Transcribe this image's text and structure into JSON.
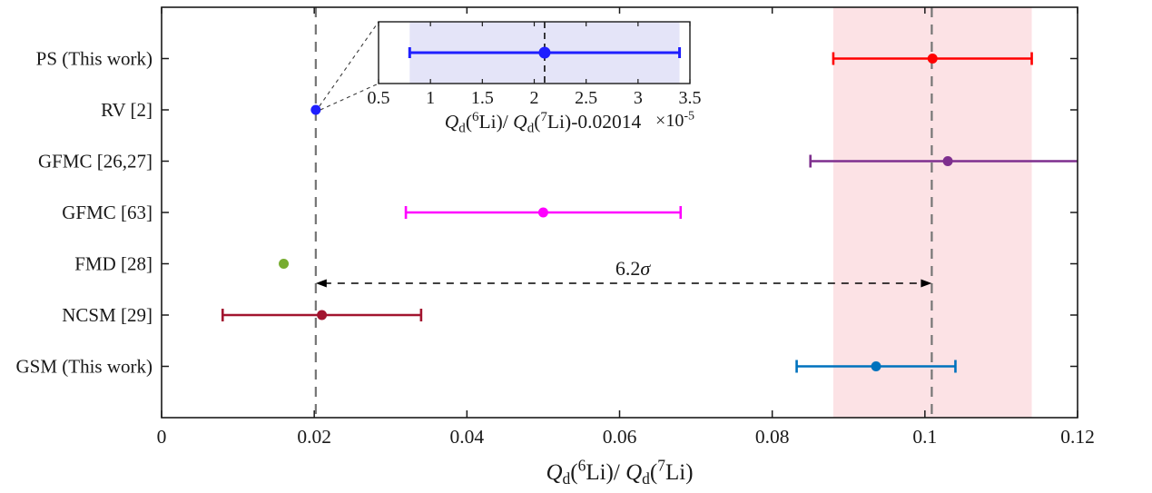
{
  "chart_data": {
    "type": "scatter",
    "title": "",
    "xlabel_plain": "Q_d(6Li)/ Q_d(7Li)",
    "xlabel_segments": [
      {
        "t": "Q",
        "s": "it"
      },
      {
        "t": "d",
        "s": "sub"
      },
      {
        "t": "(",
        "s": "n"
      },
      {
        "t": "6",
        "s": "sup"
      },
      {
        "t": "Li)/ ",
        "s": "n"
      },
      {
        "t": "Q",
        "s": "it"
      },
      {
        "t": "d",
        "s": "sub"
      },
      {
        "t": "(",
        "s": "n"
      },
      {
        "t": "7",
        "s": "sup"
      },
      {
        "t": "Li)",
        "s": "n"
      }
    ],
    "xlim": [
      0,
      0.12
    ],
    "x_ticks": [
      0,
      0.02,
      0.04,
      0.06,
      0.08,
      0.1,
      0.12
    ],
    "x_tick_labels": [
      "0",
      "0.02",
      "0.04",
      "0.06",
      "0.08",
      "0.1",
      "0.12"
    ],
    "grid": false,
    "legend": "none",
    "categories": [
      "PS (This work)",
      "RV [2]",
      "GFMC [26,27]",
      "GFMC [63]",
      "FMD [28]",
      "NCSM [29]",
      "GSM (This work)"
    ],
    "series": [
      {
        "label": "PS (This work)",
        "value": 0.101,
        "err_minus": 0.013,
        "err_plus": 0.013,
        "color": "#ff0000",
        "marker": "circle"
      },
      {
        "label": "RV [2]",
        "value": 0.0202,
        "err_minus": 1.3e-05,
        "err_plus": 1.3e-05,
        "color": "#1f1fff",
        "marker": "circle"
      },
      {
        "label": "GFMC [26,27]",
        "value": 0.103,
        "err_minus": 0.018,
        "err_plus": 0.018,
        "color": "#7e2f8e",
        "marker": "circle"
      },
      {
        "label": "GFMC [63]",
        "value": 0.05,
        "err_minus": 0.018,
        "err_plus": 0.018,
        "color": "#ff00ff",
        "marker": "circle"
      },
      {
        "label": "FMD [28]",
        "value": 0.016,
        "err_minus": 0,
        "err_plus": 0,
        "color": "#77ac30",
        "marker": "circle"
      },
      {
        "label": "NCSM [29]",
        "value": 0.021,
        "err_minus": 0.013,
        "err_plus": 0.013,
        "color": "#a2142f",
        "marker": "circle"
      },
      {
        "label": "GSM (This work)",
        "value": 0.0936,
        "err_minus": 0.0104,
        "err_plus": 0.0104,
        "color": "#0072bd",
        "marker": "circle"
      }
    ],
    "highlight_band": {
      "from": 0.088,
      "to": 0.114,
      "color": "#fce2e5"
    },
    "reference_lines": [
      {
        "x": 0.0202,
        "color": "#757575",
        "style": "dashed"
      },
      {
        "x": 0.1009,
        "color": "#757575",
        "style": "dashed"
      }
    ],
    "annotation": {
      "label_segments": [
        {
          "t": "6.2",
          "s": "n"
        },
        {
          "t": "σ",
          "s": "it"
        }
      ],
      "label_plain": "6.2σ",
      "from_x": 0.0202,
      "to_x": 0.1009,
      "style": "double-headed-dashed-arrow"
    },
    "inset": {
      "source_series": "RV [2]",
      "xlim": [
        0.5,
        3.5
      ],
      "x_ticks": [
        0.5,
        1,
        1.5,
        2,
        2.5,
        3,
        3.5
      ],
      "x_tick_labels": [
        "0.5",
        "1",
        "1.5",
        "2",
        "2.5",
        "3",
        "3.5"
      ],
      "xlabel_plain": "Q_d(6Li)/ Q_d(7Li)-0.02014",
      "xlabel_segments": [
        {
          "t": "Q",
          "s": "it"
        },
        {
          "t": "d",
          "s": "sub"
        },
        {
          "t": "(",
          "s": "n"
        },
        {
          "t": "6",
          "s": "sup"
        },
        {
          "t": "Li)/ ",
          "s": "n"
        },
        {
          "t": "Q",
          "s": "it"
        },
        {
          "t": "d",
          "s": "sub"
        },
        {
          "t": "(",
          "s": "n"
        },
        {
          "t": "7",
          "s": "sup"
        },
        {
          "t": "Li)-0.02014",
          "s": "n"
        }
      ],
      "multiplier_plain": "×10⁻⁵",
      "multiplier_segments": [
        {
          "t": "×10",
          "s": "n"
        },
        {
          "t": "-5",
          "s": "sup"
        }
      ],
      "band": {
        "from": 0.8,
        "to": 3.4,
        "color": "#e4e4f8"
      },
      "point": {
        "value": 2.1,
        "err_minus": 1.3,
        "err_plus": 1.3,
        "color": "#1f1fff"
      },
      "reference_line_x": 2.1
    }
  }
}
